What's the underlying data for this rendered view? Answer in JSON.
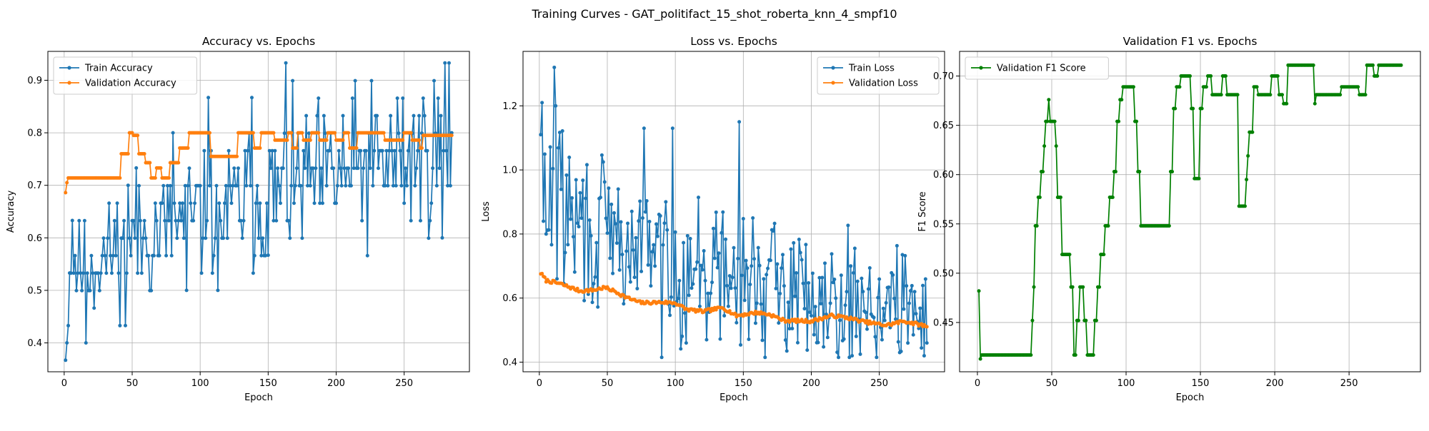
{
  "figure": {
    "suptitle": "Training Curves - GAT_politifact_15_shot_roberta_knn_4_smpf10"
  },
  "chart_data": [
    {
      "type": "line",
      "title": "Accuracy vs. Epochs",
      "xlabel": "Epoch",
      "ylabel": "Accuracy",
      "xlim": [
        -12,
        298
      ],
      "ylim": [
        0.345,
        0.955
      ],
      "xticks": [
        0,
        50,
        100,
        150,
        200,
        250
      ],
      "xtick_labels": [
        "0",
        "50",
        "100",
        "150",
        "200",
        "250"
      ],
      "yticks": [
        0.4,
        0.5,
        0.6,
        0.7,
        0.8,
        0.9
      ],
      "ytick_labels": [
        "0.4",
        "0.5",
        "0.6",
        "0.7",
        "0.8",
        "0.9"
      ],
      "grid": true,
      "legend_position": "upper-left",
      "colors": {
        "train": "#1f77b4",
        "val": "#ff7f0e"
      },
      "series": [
        {
          "name": "Train Accuracy",
          "kind": "noisy",
          "x_start": 1,
          "x_end": 285,
          "trend": [
            [
              1,
              0.37
            ],
            [
              3,
              0.45
            ],
            [
              5,
              0.55
            ],
            [
              20,
              0.55
            ],
            [
              40,
              0.58
            ],
            [
              60,
              0.6
            ],
            [
              100,
              0.64
            ],
            [
              150,
              0.68
            ],
            [
              200,
              0.72
            ],
            [
              250,
              0.75
            ],
            [
              285,
              0.78
            ]
          ],
          "noise_amp": [
            [
              1,
              0.02
            ],
            [
              10,
              0.07
            ],
            [
              60,
              0.09
            ],
            [
              150,
              0.11
            ],
            [
              285,
              0.12
            ]
          ],
          "clip": [
            0.367,
            0.933
          ],
          "quantize": 0.0333,
          "seed": 11,
          "anchors": [
            [
              1,
              0.367
            ],
            [
              2,
              0.4
            ],
            [
              4,
              0.533
            ],
            [
              6,
              0.633
            ],
            [
              12,
              0.533
            ],
            [
              16,
              0.4
            ],
            [
              45,
              0.433
            ],
            [
              47,
              0.7
            ],
            [
              53,
              0.733
            ],
            [
              80,
              0.8
            ],
            [
              90,
              0.5
            ],
            [
              106,
              0.867
            ],
            [
              113,
              0.5
            ],
            [
              138,
              0.867
            ],
            [
              150,
              0.567
            ],
            [
              163,
              0.933
            ],
            [
              278,
              0.6
            ],
            [
              280,
              0.933
            ],
            [
              283,
              0.933
            ],
            [
              285,
              0.8
            ]
          ]
        },
        {
          "name": "Validation Accuracy",
          "kind": "steps",
          "x_start": 1,
          "x_end": 285,
          "steps": [
            [
              1,
              0.686
            ],
            [
              2,
              0.705
            ],
            [
              3,
              0.714
            ],
            [
              38,
              0.714
            ],
            [
              42,
              0.76
            ],
            [
              48,
              0.8
            ],
            [
              51,
              0.795
            ],
            [
              55,
              0.76
            ],
            [
              60,
              0.743
            ],
            [
              64,
              0.714
            ],
            [
              68,
              0.733
            ],
            [
              72,
              0.714
            ],
            [
              78,
              0.743
            ],
            [
              85,
              0.771
            ],
            [
              92,
              0.8
            ],
            [
              104,
              0.8
            ],
            [
              108,
              0.755
            ],
            [
              128,
              0.8
            ],
            [
              138,
              0.8
            ],
            [
              140,
              0.771
            ],
            [
              145,
              0.8
            ],
            [
              155,
              0.786
            ],
            [
              165,
              0.8
            ],
            [
              168,
              0.771
            ],
            [
              172,
              0.8
            ],
            [
              176,
              0.786
            ],
            [
              182,
              0.8
            ],
            [
              188,
              0.786
            ],
            [
              194,
              0.8
            ],
            [
              200,
              0.786
            ],
            [
              206,
              0.8
            ],
            [
              210,
              0.771
            ],
            [
              216,
              0.8
            ],
            [
              236,
              0.786
            ],
            [
              250,
              0.8
            ],
            [
              256,
              0.786
            ],
            [
              262,
              0.771
            ],
            [
              264,
              0.795
            ],
            [
              285,
              0.795
            ]
          ]
        }
      ]
    },
    {
      "type": "line",
      "title": "Loss vs. Epochs",
      "xlabel": "Epoch",
      "ylabel": "Loss",
      "xlim": [
        -12,
        298
      ],
      "ylim": [
        0.37,
        1.37
      ],
      "xticks": [
        0,
        50,
        100,
        150,
        200,
        250
      ],
      "xtick_labels": [
        "0",
        "50",
        "100",
        "150",
        "200",
        "250"
      ],
      "yticks": [
        0.4,
        0.6,
        0.8,
        1.0,
        1.2
      ],
      "ytick_labels": [
        "0.4",
        "0.6",
        "0.8",
        "1.0",
        "1.2"
      ],
      "grid": true,
      "legend_position": "upper-right",
      "colors": {
        "train": "#1f77b4",
        "val": "#ff7f0e"
      },
      "series": [
        {
          "name": "Train Loss",
          "kind": "noisy",
          "x_start": 1,
          "x_end": 285,
          "trend": [
            [
              1,
              1.0
            ],
            [
              10,
              0.92
            ],
            [
              30,
              0.82
            ],
            [
              60,
              0.76
            ],
            [
              100,
              0.7
            ],
            [
              150,
              0.66
            ],
            [
              200,
              0.62
            ],
            [
              250,
              0.58
            ],
            [
              285,
              0.55
            ]
          ],
          "noise_amp": [
            [
              1,
              0.2
            ],
            [
              50,
              0.2
            ],
            [
              150,
              0.16
            ],
            [
              285,
              0.14
            ]
          ],
          "clip": [
            0.415,
            1.32
          ],
          "quantize": 0,
          "seed": 29,
          "anchors": [
            [
              1,
              1.11
            ],
            [
              2,
              1.21
            ],
            [
              3,
              0.84
            ],
            [
              5,
              0.8
            ],
            [
              11,
              1.32
            ],
            [
              12,
              1.2
            ],
            [
              13,
              0.66
            ],
            [
              77,
              1.13
            ],
            [
              98,
              1.13
            ],
            [
              108,
              0.46
            ],
            [
              147,
              1.15
            ],
            [
              230,
              0.42
            ],
            [
              265,
              0.43
            ],
            [
              283,
              0.42
            ],
            [
              285,
              0.46
            ]
          ]
        },
        {
          "name": "Validation Loss",
          "kind": "smooth",
          "x_start": 1,
          "x_end": 285,
          "points": [
            [
              1,
              0.678
            ],
            [
              5,
              0.655
            ],
            [
              15,
              0.645
            ],
            [
              30,
              0.622
            ],
            [
              40,
              0.625
            ],
            [
              48,
              0.633
            ],
            [
              55,
              0.622
            ],
            [
              65,
              0.6
            ],
            [
              75,
              0.585
            ],
            [
              90,
              0.587
            ],
            [
              100,
              0.585
            ],
            [
              108,
              0.565
            ],
            [
              120,
              0.558
            ],
            [
              135,
              0.57
            ],
            [
              145,
              0.545
            ],
            [
              160,
              0.555
            ],
            [
              170,
              0.548
            ],
            [
              180,
              0.53
            ],
            [
              200,
              0.528
            ],
            [
              215,
              0.545
            ],
            [
              225,
              0.54
            ],
            [
              240,
              0.525
            ],
            [
              255,
              0.515
            ],
            [
              268,
              0.528
            ],
            [
              285,
              0.512
            ]
          ],
          "wiggle": 0.005,
          "seed": 7
        }
      ]
    },
    {
      "type": "line",
      "title": "Validation F1 vs. Epochs",
      "xlabel": "Epoch",
      "ylabel": "F1 Score",
      "xlim": [
        -12,
        298
      ],
      "ylim": [
        0.4,
        0.725
      ],
      "xticks": [
        0,
        50,
        100,
        150,
        200,
        250
      ],
      "xtick_labels": [
        "0",
        "50",
        "100",
        "150",
        "200",
        "250"
      ],
      "yticks": [
        0.45,
        0.5,
        0.55,
        0.6,
        0.65,
        0.7
      ],
      "ytick_labels": [
        "0.45",
        "0.50",
        "0.55",
        "0.60",
        "0.65",
        "0.70"
      ],
      "grid": true,
      "legend_position": "upper-left",
      "colors": {
        "val": "#008000"
      },
      "series": [
        {
          "name": "Validation F1 Score",
          "kind": "steps",
          "x_start": 1,
          "x_end": 285,
          "steps": [
            [
              1,
              0.482
            ],
            [
              2,
              0.413
            ],
            [
              3,
              0.417
            ],
            [
              36,
              0.417
            ],
            [
              37,
              0.452
            ],
            [
              38,
              0.486
            ],
            [
              39,
              0.548
            ],
            [
              41,
              0.577
            ],
            [
              43,
              0.603
            ],
            [
              45,
              0.629
            ],
            [
              46,
              0.654
            ],
            [
              48,
              0.676
            ],
            [
              49,
              0.654
            ],
            [
              53,
              0.629
            ],
            [
              54,
              0.577
            ],
            [
              57,
              0.519
            ],
            [
              63,
              0.486
            ],
            [
              65,
              0.417
            ],
            [
              67,
              0.452
            ],
            [
              69,
              0.486
            ],
            [
              72,
              0.452
            ],
            [
              74,
              0.417
            ],
            [
              79,
              0.452
            ],
            [
              81,
              0.486
            ],
            [
              83,
              0.519
            ],
            [
              86,
              0.548
            ],
            [
              89,
              0.577
            ],
            [
              92,
              0.603
            ],
            [
              94,
              0.654
            ],
            [
              96,
              0.676
            ],
            [
              98,
              0.689
            ],
            [
              104,
              0.689
            ],
            [
              106,
              0.654
            ],
            [
              108,
              0.603
            ],
            [
              110,
              0.548
            ],
            [
              128,
              0.548
            ],
            [
              130,
              0.603
            ],
            [
              132,
              0.667
            ],
            [
              134,
              0.689
            ],
            [
              137,
              0.7
            ],
            [
              144,
              0.667
            ],
            [
              146,
              0.596
            ],
            [
              150,
              0.667
            ],
            [
              152,
              0.689
            ],
            [
              155,
              0.7
            ],
            [
              158,
              0.681
            ],
            [
              165,
              0.7
            ],
            [
              168,
              0.681
            ],
            [
              176,
              0.568
            ],
            [
              181,
              0.595
            ],
            [
              182,
              0.619
            ],
            [
              183,
              0.643
            ],
            [
              186,
              0.689
            ],
            [
              189,
              0.681
            ],
            [
              198,
              0.7
            ],
            [
              203,
              0.681
            ],
            [
              206,
              0.672
            ],
            [
              209,
              0.711
            ],
            [
              227,
              0.672
            ],
            [
              228,
              0.681
            ],
            [
              245,
              0.689
            ],
            [
              257,
              0.681
            ],
            [
              262,
              0.711
            ],
            [
              267,
              0.7
            ],
            [
              270,
              0.711
            ],
            [
              285,
              0.711
            ]
          ]
        }
      ]
    }
  ]
}
